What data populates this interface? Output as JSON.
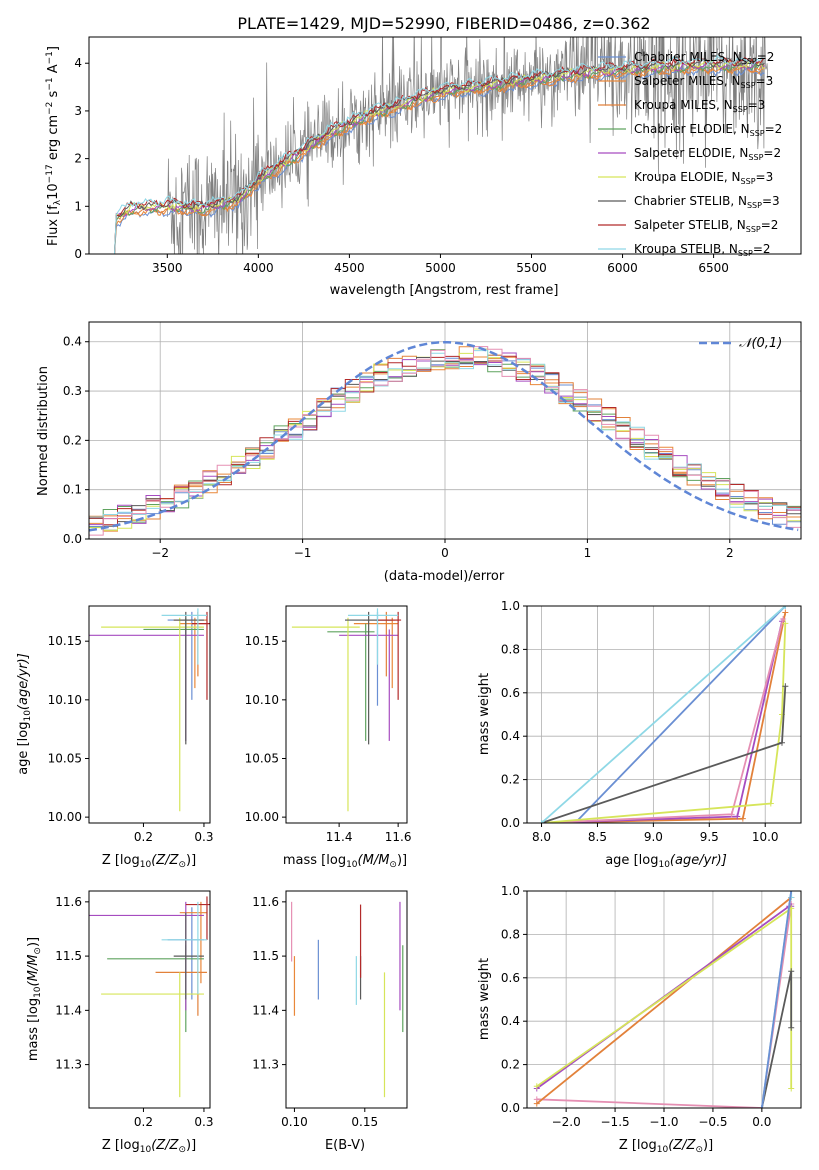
{
  "figure_title": "PLATE=1429, MJD=52990, FIBERID=0486, z=0.362",
  "colors": {
    "Chabrier MILES": "#6a8fd3",
    "Salpeter MILES": "#e9883a",
    "Kroupa MILES": "#e2813a",
    "Chabrier ELODIE": "#5fa35f",
    "Salpeter ELODIE": "#a64cc0",
    "Kroupa ELODIE": "#d6e55a",
    "Chabrier STELIB": "#5a5a5a",
    "Salpeter STELIB": "#b22a2a",
    "Kroupa STELIB": "#8fd8e6",
    "pink": "#e58fb3",
    "normal": "#5f86d6",
    "data": "#808080"
  },
  "chart_data": [
    {
      "id": "spectrum",
      "type": "line",
      "title": "PLATE=1429, MJD=52990, FIBERID=0486, z=0.362",
      "xlabel": "wavelength [Angstrom, rest frame]",
      "ylabel_main": "Flux [f",
      "ylabel_sub": "λ",
      "ylabel_rest": "10",
      "ylabel_exp": "−17",
      "ylabel_units": " erg cm",
      "ylabel_exp2": "−2",
      "ylabel_units2": " s",
      "ylabel_exp3": "−1",
      "ylabel_units3": " A",
      "ylabel_exp4": "−1",
      "ylabel_end": "]",
      "xlim": [
        3070,
        6980
      ],
      "ylim": [
        0,
        4.55
      ],
      "xticks": [
        3500,
        4000,
        4500,
        5000,
        5500,
        6000,
        6500
      ],
      "xtick_labels": [
        "3500",
        "4000",
        "4500",
        "5000",
        "5500",
        "6000",
        "6500"
      ],
      "yticks": [
        0,
        1,
        2,
        3,
        4
      ],
      "ytick_labels": [
        "0",
        "1",
        "2",
        "3",
        "4"
      ],
      "model_anchor_x": [
        3200,
        3300,
        3500,
        3700,
        3900,
        4000,
        4200,
        4400,
        4600,
        4800,
        5000,
        5200,
        5400,
        5600,
        5800,
        6000,
        6200,
        6400,
        6600,
        6780
      ],
      "model_anchor_y": [
        0.7,
        0.95,
        1.0,
        0.95,
        1.15,
        1.55,
        2.05,
        2.55,
        2.9,
        3.15,
        3.4,
        3.5,
        3.6,
        3.7,
        3.8,
        3.85,
        3.9,
        3.95,
        3.95,
        3.95
      ],
      "data_range": [
        3500,
        6800
      ],
      "legend": [
        {
          "name": "Chabrier MILES",
          "n": "2"
        },
        {
          "name": "Salpeter MILES",
          "n": "3"
        },
        {
          "name": "Kroupa MILES",
          "n": "3"
        },
        {
          "name": "Chabrier ELODIE",
          "n": "2"
        },
        {
          "name": "Salpeter ELODIE",
          "n": "2"
        },
        {
          "name": "Kroupa ELODIE",
          "n": "3"
        },
        {
          "name": "Chabrier STELIB",
          "n": "3"
        },
        {
          "name": "Salpeter STELIB",
          "n": "2"
        },
        {
          "name": "Kroupa STELIB",
          "n": "2"
        }
      ],
      "legend_n_prefix": "N",
      "legend_n_sub": "SSP",
      "legend_placement": "top-right",
      "grid": false
    },
    {
      "id": "residuals",
      "type": "histogram",
      "xlabel": "(data-model)/error",
      "ylabel": "Normed distribution",
      "xlim": [
        -2.5,
        2.5
      ],
      "ylim": [
        0,
        0.44
      ],
      "xticks": [
        -2,
        -1,
        0,
        1,
        2
      ],
      "xtick_labels": [
        "−2",
        "−1",
        "0",
        "1",
        "2"
      ],
      "yticks": [
        0,
        0.1,
        0.2,
        0.3,
        0.4
      ],
      "ytick_labels": [
        "0.0",
        "0.1",
        "0.2",
        "0.3",
        "0.4"
      ],
      "bin_width": 0.1,
      "legend": "𝒩(0,1)",
      "normal_mu": 0,
      "normal_sigma": 1,
      "grid": true,
      "legend_placement": "top-right"
    },
    {
      "id": "age-vs-Z",
      "type": "errorbar",
      "xlabel": "Z [log",
      "xlabel_sub": "10",
      "xlabel_rest": "(Z/Z",
      "xlabel_sub2": "⊙",
      "xlabel_end": ")]",
      "ylabel": "age  [log",
      "ylabel_sub": "10",
      "ylabel_rest": "(age/yr)]",
      "xlim": [
        0.11,
        0.31
      ],
      "ylim": [
        9.995,
        10.18
      ],
      "xticks": [
        0.2,
        0.3
      ],
      "xtick_labels": [
        "0.2",
        "0.3"
      ],
      "yticks": [
        10.0,
        10.05,
        10.1,
        10.15
      ],
      "ytick_labels": [
        "10.00",
        "10.05",
        "10.10",
        "10.15"
      ],
      "points": [
        {
          "c": "Chabrier MILES",
          "x": 0.28,
          "y": 10.168,
          "xl": 0.24,
          "xh": 0.305,
          "yl": 10.1,
          "yh": 10.175
        },
        {
          "c": "Salpeter MILES",
          "x": 0.285,
          "y": 10.165,
          "xl": 0.26,
          "xh": 0.305,
          "yl": 10.11,
          "yh": 10.17
        },
        {
          "c": "Kroupa MILES",
          "x": 0.29,
          "y": 10.168,
          "xl": 0.25,
          "xh": 0.305,
          "yl": 10.12,
          "yh": 10.175
        },
        {
          "c": "Chabrier ELODIE",
          "x": 0.27,
          "y": 10.16,
          "xl": 0.2,
          "xh": 0.3,
          "yl": 10.065,
          "yh": 10.17
        },
        {
          "c": "Salpeter ELODIE",
          "x": 0.27,
          "y": 10.155,
          "xl": 0.11,
          "xh": 0.3,
          "yl": 10.065,
          "yh": 10.16
        },
        {
          "c": "Kroupa ELODIE",
          "x": 0.26,
          "y": 10.162,
          "xl": 0.13,
          "xh": 0.3,
          "yl": 10.005,
          "yh": 10.17
        },
        {
          "c": "Chabrier STELIB",
          "x": 0.27,
          "y": 10.168,
          "xl": 0.25,
          "xh": 0.3,
          "yl": 10.062,
          "yh": 10.175
        },
        {
          "c": "Salpeter STELIB",
          "x": 0.305,
          "y": 10.165,
          "xl": 0.28,
          "xh": 0.31,
          "yl": 10.1,
          "yh": 10.175
        },
        {
          "c": "Kroupa STELIB",
          "x": 0.29,
          "y": 10.172,
          "xl": 0.23,
          "xh": 0.305,
          "yl": 10.13,
          "yh": 10.178
        }
      ]
    },
    {
      "id": "age-vs-mass",
      "type": "errorbar",
      "xlabel": "mass [log",
      "xlabel_sub": "10",
      "xlabel_rest": "(M/M",
      "xlabel_sub2": "⊙",
      "xlabel_end": ")]",
      "xlim": [
        11.22,
        11.63
      ],
      "ylim": [
        9.995,
        10.18
      ],
      "xticks": [
        11.4,
        11.6
      ],
      "xtick_labels": [
        "11.4",
        "11.6"
      ],
      "yticks": [
        10.0,
        10.05,
        10.1,
        10.15
      ],
      "ytick_labels": [
        "10.00",
        "10.05",
        "10.10",
        "10.15"
      ],
      "points": [
        {
          "c": "Chabrier MILES",
          "x": 11.53,
          "y": 10.168,
          "xl": 11.42,
          "xh": 11.59,
          "yl": 10.095,
          "yh": 10.175
        },
        {
          "c": "Salpeter MILES",
          "x": 11.58,
          "y": 10.165,
          "xl": 11.45,
          "xh": 11.6,
          "yl": 10.11,
          "yh": 10.17
        },
        {
          "c": "Kroupa MILES",
          "x": 11.56,
          "y": 10.168,
          "xl": 11.48,
          "xh": 11.6,
          "yl": 10.12,
          "yh": 10.175
        },
        {
          "c": "Chabrier ELODIE",
          "x": 11.49,
          "y": 10.158,
          "xl": 11.36,
          "xh": 11.52,
          "yl": 10.065,
          "yh": 10.165
        },
        {
          "c": "Salpeter ELODIE",
          "x": 11.57,
          "y": 10.155,
          "xl": 11.4,
          "xh": 11.6,
          "yl": 10.065,
          "yh": 10.16
        },
        {
          "c": "Kroupa ELODIE",
          "x": 11.43,
          "y": 10.162,
          "xl": 11.24,
          "xh": 11.47,
          "yl": 10.005,
          "yh": 10.17
        },
        {
          "c": "Chabrier STELIB",
          "x": 11.5,
          "y": 10.168,
          "xl": 11.42,
          "xh": 11.58,
          "yl": 10.062,
          "yh": 10.175
        },
        {
          "c": "Salpeter STELIB",
          "x": 11.6,
          "y": 10.168,
          "xl": 11.53,
          "xh": 11.61,
          "yl": 10.1,
          "yh": 10.175
        },
        {
          "c": "Kroupa STELIB",
          "x": 11.53,
          "y": 10.172,
          "xl": 11.43,
          "xh": 11.6,
          "yl": 10.13,
          "yh": 10.178
        }
      ]
    },
    {
      "id": "cum-age",
      "type": "line",
      "xlabel": "age  [log",
      "xlabel_sub": "10",
      "xlabel_rest": "(age/yr)]",
      "ylabel": "mass weight",
      "xlim": [
        7.87,
        10.32
      ],
      "ylim": [
        0,
        1.0
      ],
      "xticks": [
        8.0,
        8.5,
        9.0,
        9.5,
        10.0
      ],
      "xtick_labels": [
        "8.0",
        "8.5",
        "9.0",
        "9.5",
        "10.0"
      ],
      "yticks": [
        0,
        0.2,
        0.4,
        0.6,
        0.8,
        1.0
      ],
      "ytick_labels": [
        "0.0",
        "0.2",
        "0.4",
        "0.6",
        "0.8",
        "1.0"
      ],
      "grid": true,
      "series": [
        {
          "c": "Chabrier MILES",
          "x": [
            8.0,
            8.3,
            10.18
          ],
          "y": [
            0,
            0,
            1.0
          ]
        },
        {
          "c": "Kroupa MILES",
          "x": [
            8.0,
            9.8,
            10.18
          ],
          "y": [
            0,
            0.02,
            0.97
          ]
        },
        {
          "c": "Salpeter ELODIE",
          "x": [
            8.0,
            9.75,
            10.15
          ],
          "y": [
            0,
            0.03,
            0.93
          ]
        },
        {
          "c": "pink",
          "x": [
            8.0,
            9.7,
            10.16
          ],
          "y": [
            0,
            0.04,
            0.94
          ]
        },
        {
          "c": "Kroupa ELODIE",
          "x": [
            8.0,
            10.05,
            10.15,
            10.18
          ],
          "y": [
            0,
            0.09,
            0.5,
            0.92
          ]
        },
        {
          "c": "Chabrier STELIB",
          "x": [
            8.0,
            10.15,
            10.18
          ],
          "y": [
            0,
            0.37,
            0.63
          ]
        },
        {
          "c": "Kroupa STELIB",
          "x": [
            8.0,
            10.18
          ],
          "y": [
            0,
            1.0
          ]
        }
      ]
    },
    {
      "id": "mass-vs-Z",
      "type": "errorbar",
      "xlabel": "Z [log",
      "xlabel_sub": "10",
      "xlabel_rest": "(Z/Z",
      "xlabel_sub2": "⊙",
      "xlabel_end": ")]",
      "ylabel": "mass [log",
      "ylabel_sub": "10",
      "ylabel_rest": "(M/M",
      "ylabel_sub2": "⊙",
      "ylabel_end": ")]",
      "xlim": [
        0.11,
        0.31
      ],
      "ylim": [
        11.22,
        11.62
      ],
      "xticks": [
        0.2,
        0.3
      ],
      "xtick_labels": [
        "0.2",
        "0.3"
      ],
      "yticks": [
        11.3,
        11.4,
        11.5,
        11.6
      ],
      "ytick_labels": [
        "11.3",
        "11.4",
        "11.5",
        "11.6"
      ],
      "points": [
        {
          "c": "Chabrier MILES",
          "x": 0.28,
          "y": 11.53,
          "xl": 0.24,
          "xh": 0.3,
          "yl": 11.42,
          "yh": 11.59
        },
        {
          "c": "Salpeter MILES",
          "x": 0.295,
          "y": 11.58,
          "xl": 0.26,
          "xh": 0.305,
          "yl": 11.45,
          "yh": 11.6
        },
        {
          "c": "Kroupa MILES",
          "x": 0.29,
          "y": 11.47,
          "xl": 0.22,
          "xh": 0.305,
          "yl": 11.39,
          "yh": 11.5
        },
        {
          "c": "Chabrier ELODIE",
          "x": 0.27,
          "y": 11.495,
          "xl": 0.14,
          "xh": 0.3,
          "yl": 11.36,
          "yh": 11.52
        },
        {
          "c": "Salpeter ELODIE",
          "x": 0.27,
          "y": 11.575,
          "xl": 0.11,
          "xh": 0.3,
          "yl": 11.4,
          "yh": 11.6
        },
        {
          "c": "Kroupa ELODIE",
          "x": 0.26,
          "y": 11.43,
          "xl": 0.13,
          "xh": 0.3,
          "yl": 11.24,
          "yh": 11.47
        },
        {
          "c": "Chabrier STELIB",
          "x": 0.27,
          "y": 11.5,
          "xl": 0.25,
          "xh": 0.3,
          "yl": 11.42,
          "yh": 11.58
        },
        {
          "c": "Salpeter STELIB",
          "x": 0.305,
          "y": 11.595,
          "xl": 0.27,
          "xh": 0.31,
          "yl": 11.53,
          "yh": 11.61
        },
        {
          "c": "Kroupa STELIB",
          "x": 0.29,
          "y": 11.53,
          "xl": 0.23,
          "xh": 0.305,
          "yl": 11.43,
          "yh": 11.6
        }
      ]
    },
    {
      "id": "mass-vs-EBV",
      "type": "errorbar",
      "xlabel": "E(B-V)",
      "xlim": [
        0.094,
        0.18
      ],
      "ylim": [
        11.22,
        11.62
      ],
      "xticks": [
        0.1,
        0.15
      ],
      "xtick_labels": [
        "0.10",
        "0.15"
      ],
      "yticks": [
        11.3,
        11.4,
        11.5,
        11.6
      ],
      "ytick_labels": [
        "11.3",
        "11.4",
        "11.5",
        "11.6"
      ],
      "points": [
        {
          "c": "Chabrier MILES",
          "x": 0.117,
          "y": 11.47,
          "yl": 11.42,
          "yh": 11.53
        },
        {
          "c": "Salpeter MILES",
          "x": 0.1,
          "y": 11.45,
          "yl": 11.39,
          "yh": 11.5
        },
        {
          "c": "pink",
          "x": 0.098,
          "y": 11.55,
          "yl": 11.49,
          "yh": 11.6
        },
        {
          "c": "Chabrier ELODIE",
          "x": 0.177,
          "y": 11.44,
          "yl": 11.36,
          "yh": 11.52
        },
        {
          "c": "Salpeter ELODIE",
          "x": 0.175,
          "y": 11.5,
          "yl": 11.4,
          "yh": 11.6
        },
        {
          "c": "Kroupa ELODIE",
          "x": 0.164,
          "y": 11.35,
          "yl": 11.24,
          "yh": 11.47
        },
        {
          "c": "Chabrier STELIB",
          "x": 0.147,
          "y": 11.45,
          "yl": 11.42,
          "yh": 11.5
        },
        {
          "c": "Salpeter STELIB",
          "x": 0.147,
          "y": 11.52,
          "yl": 11.46,
          "yh": 11.595
        },
        {
          "c": "Kroupa STELIB",
          "x": 0.144,
          "y": 11.45,
          "yl": 11.41,
          "yh": 11.5
        }
      ]
    },
    {
      "id": "cum-Z",
      "type": "line",
      "xlabel": "Z [log",
      "xlabel_sub": "10",
      "xlabel_rest": "(Z/Z",
      "xlabel_sub2": "⊙",
      "xlabel_end": ")]",
      "ylabel": "mass weight",
      "xlim": [
        -2.4,
        0.4
      ],
      "ylim": [
        0,
        1.0
      ],
      "xticks": [
        -2.0,
        -1.5,
        -1.0,
        -0.5,
        0.0
      ],
      "xtick_labels": [
        "−2.0",
        "−1.5",
        "−1.0",
        "−0.5",
        "0.0"
      ],
      "yticks": [
        0,
        0.2,
        0.4,
        0.6,
        0.8,
        1.0
      ],
      "ytick_labels": [
        "0.0",
        "0.2",
        "0.4",
        "0.6",
        "0.8",
        "1.0"
      ],
      "grid": true,
      "series": [
        {
          "c": "pink",
          "x": [
            -2.3,
            0.0,
            0.3
          ],
          "y": [
            0.04,
            0.0,
            0.94
          ]
        },
        {
          "c": "Kroupa MILES",
          "x": [
            -2.3,
            0.3,
            0.3
          ],
          "y": [
            0.02,
            0.97,
            0.97
          ]
        },
        {
          "c": "Salpeter ELODIE",
          "x": [
            -2.3,
            0.28,
            0.3
          ],
          "y": [
            0.09,
            0.93,
            0.93
          ]
        },
        {
          "c": "Kroupa ELODIE",
          "x": [
            -2.3,
            0.3,
            0.3
          ],
          "y": [
            0.1,
            0.92,
            0.09
          ]
        },
        {
          "c": "Chabrier STELIB",
          "x": [
            0.0,
            0.3,
            0.3
          ],
          "y": [
            0.0,
            0.63,
            0.37
          ]
        },
        {
          "c": "Kroupa STELIB",
          "x": [
            0.0,
            0.3,
            0.3
          ],
          "y": [
            0.0,
            1.0,
            0.97
          ]
        },
        {
          "c": "Chabrier MILES",
          "x": [
            0.0,
            0.3
          ],
          "y": [
            0.0,
            1.0
          ]
        }
      ]
    }
  ]
}
